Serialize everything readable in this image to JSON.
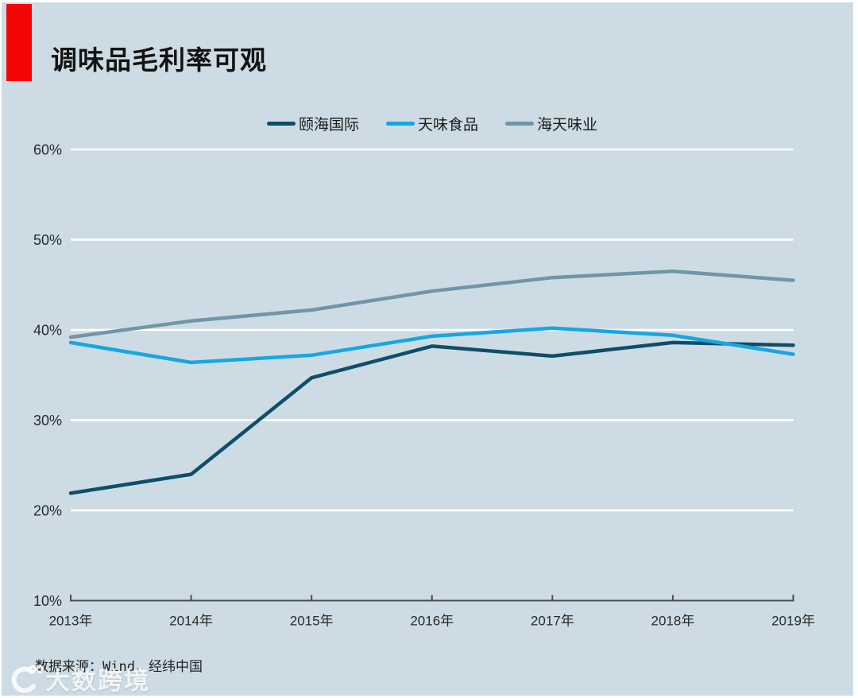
{
  "page": {
    "title": "调味品毛利率可观",
    "source_note": "数据来源：Wind，经纬中国",
    "watermark_text": "大数跨境"
  },
  "colors": {
    "accent_red": "#f50606",
    "background": "#cddce4",
    "gridline": "#ffffff",
    "axis_line": "#4c4c4c",
    "text_primary": "#1a1a1a",
    "series_yihai": "#0f4e69",
    "series_tianwei": "#17a7e0",
    "series_haitian": "#7295a7"
  },
  "chart_data": {
    "type": "line",
    "title": "调味品毛利率可观",
    "categories": [
      "2013年",
      "2014年",
      "2015年",
      "2016年",
      "2017年",
      "2018年",
      "2019年"
    ],
    "series": [
      {
        "name": "颐海国际",
        "color": "#0f4e69",
        "values": [
          21.9,
          24.0,
          34.7,
          38.2,
          37.1,
          38.6,
          38.3
        ]
      },
      {
        "name": "天味食品",
        "color": "#17a7e0",
        "values": [
          38.6,
          36.4,
          37.2,
          39.3,
          40.2,
          39.4,
          37.3
        ]
      },
      {
        "name": "海天味业",
        "color": "#7295a7",
        "values": [
          39.2,
          41.0,
          42.2,
          44.3,
          45.8,
          46.5,
          45.5
        ]
      }
    ],
    "xlabel": "",
    "ylabel": "",
    "ylim": [
      10,
      60
    ],
    "ytick_step": 10,
    "ytick_labels": [
      "10%",
      "20%",
      "30%",
      "40%",
      "50%",
      "60%"
    ],
    "grid": "horizontal",
    "legend_position": "top"
  }
}
